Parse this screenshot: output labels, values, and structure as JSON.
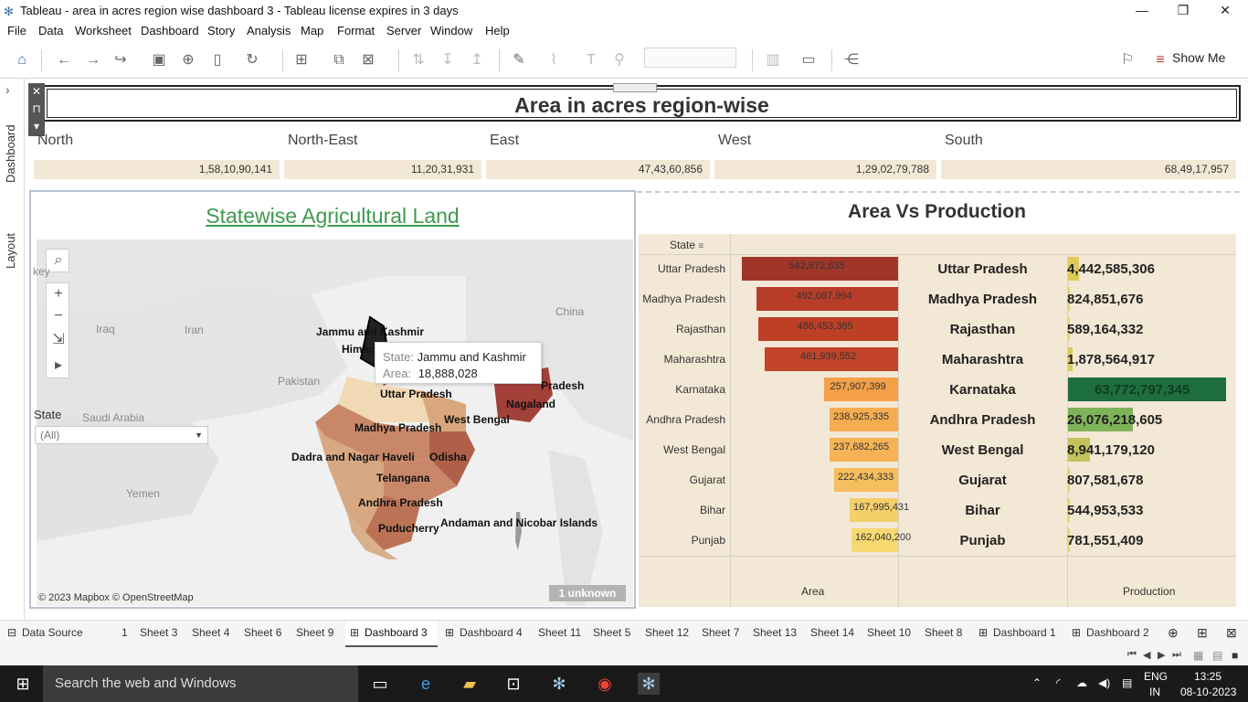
{
  "window": {
    "title": "Tableau - area in acres region wise dashboard 3 - Tableau license expires in 3 days",
    "minimize": "—",
    "restore": "❐",
    "close": "✕"
  },
  "menu": [
    "File",
    "Data",
    "Worksheet",
    "Dashboard",
    "Story",
    "Analysis",
    "Map",
    "Format",
    "Server",
    "Window",
    "Help"
  ],
  "toolbar": {
    "show_me": "Show Me"
  },
  "side_tabs": [
    "Dashboard",
    "Layout"
  ],
  "dashboard": {
    "title": "Area in acres region-wise",
    "regions": [
      {
        "name": "North",
        "value": "1,58,10,90,141"
      },
      {
        "name": "North-East",
        "value": "11,20,31,931"
      },
      {
        "name": "East",
        "value": "47,43,60,856"
      },
      {
        "name": "West",
        "value": "1,29,02,79,788"
      },
      {
        "name": "South",
        "value": "68,49,17,957"
      }
    ]
  },
  "map": {
    "title": "Statewise Agricultural Land",
    "state_filter_label": "State",
    "state_filter_value": "(All)",
    "tooltip": {
      "state_key": "State:",
      "state_value": "Jammu and Kashmir",
      "area_key": "Area:",
      "area_value": "18,888,028"
    },
    "state_labels": [
      "Jammu and Kashmir",
      "Himac",
      "Uttar Pradesh",
      "Madhya Pradesh",
      "West Bengal",
      "Nagaland",
      "Pradesh",
      "Dadra and Nagar Haveli",
      "Odisha",
      "Telangana",
      "Andhra Pradesh",
      "Puducherry",
      "Andaman and Nicobar Islands"
    ],
    "geo_labels": [
      "Iraq",
      "Iran",
      "Pakistan",
      "Saudi Arabia",
      "Yemen",
      "China",
      "key"
    ],
    "attribution": "© 2023 Mapbox © OpenStreetMap",
    "unknown": "1 unknown"
  },
  "chart_data": {
    "type": "bar",
    "title": "Area Vs Production",
    "dimension_header": "State",
    "categories": [
      "Uttar Pradesh",
      "Madhya Pradesh",
      "Rajasthan",
      "Maharashtra",
      "Karnataka",
      "Andhra Pradesh",
      "West Bengal",
      "Gujarat",
      "Bihar",
      "Punjab"
    ],
    "series": [
      {
        "name": "Area",
        "values": [
          542672635,
          492087994,
          486453365,
          461939552,
          257907399,
          238925335,
          237682265,
          222434333,
          167995431,
          162040200
        ],
        "labels": [
          "542,672,635",
          "492,087,994",
          "486,453,365",
          "461,939,552",
          "257,907,399",
          "238,925,335",
          "237,682,265",
          "222,434,333",
          "167,995,431",
          "162,040,200"
        ]
      },
      {
        "name": "Production",
        "values": [
          4442585306,
          824851676,
          589164332,
          1878564917,
          63772797345,
          26076218605,
          8941179120,
          807581678,
          544953533,
          781551409
        ],
        "labels": [
          "4,442,585,306",
          "824,851,676",
          "589,164,332",
          "1,878,564,917",
          "63,772,797,345",
          "26,076,218,605",
          "8,941,179,120",
          "807,581,678",
          "544,953,533",
          "781,551,409"
        ]
      }
    ],
    "area_colors": [
      "#a0362a",
      "#b83d29",
      "#bc3f26",
      "#c2442a",
      "#f3a048",
      "#f6ad52",
      "#f6b356",
      "#f5be5e",
      "#f5cf6a",
      "#f5d870"
    ],
    "production_colors": [
      "#dccb5c",
      "#e5d66a",
      "#e5d66a",
      "#dccb5c",
      "#1e6e3e",
      "#7fb35a",
      "#c3c25c",
      "#e5d66a",
      "#e5d66a",
      "#e5d66a"
    ]
  },
  "tabs": [
    "Data Source",
    "1",
    "Sheet 3",
    "Sheet 4",
    "Sheet 6",
    "Sheet 9",
    "Dashboard 3",
    "Dashboard 4",
    "Sheet 11",
    "Sheet 5",
    "Sheet 12",
    "Sheet 7",
    "Sheet 13",
    "Sheet 14",
    "Sheet 10",
    "Sheet 8",
    "Dashboard 1",
    "Dashboard 2"
  ],
  "taskbar": {
    "search": "Search the web and Windows",
    "lang_top": "ENG",
    "lang_bottom": "IN",
    "time": "13:25",
    "date": "08-10-2023"
  }
}
